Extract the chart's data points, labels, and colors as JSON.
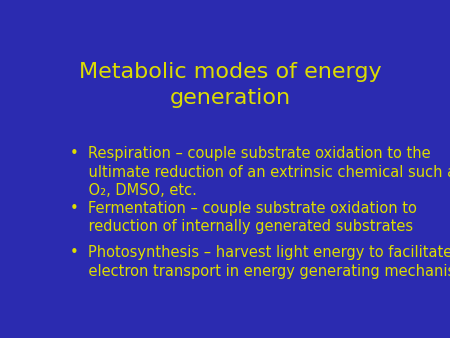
{
  "title_line1": "Metabolic modes of energy",
  "title_line2": "generation",
  "title_color": "#DDDD00",
  "title_fontsize": 16,
  "background_color": "#2B2BB0",
  "bullet_color": "#DDDD00",
  "bullet_fontsize": 10.5,
  "bullets": [
    {
      "lines": [
        "•  Respiration – couple substrate oxidation to the",
        "    ultimate reduction of an extrinsic chemical such as",
        "    O₂, DMSO, etc."
      ]
    },
    {
      "lines": [
        "•  Fermentation – couple substrate oxidation to",
        "    reduction of internally generated substrates"
      ]
    },
    {
      "lines": [
        "•  Photosynthesis – harvest light energy to facilitate",
        "    electron transport in energy generating mechanism"
      ]
    }
  ]
}
